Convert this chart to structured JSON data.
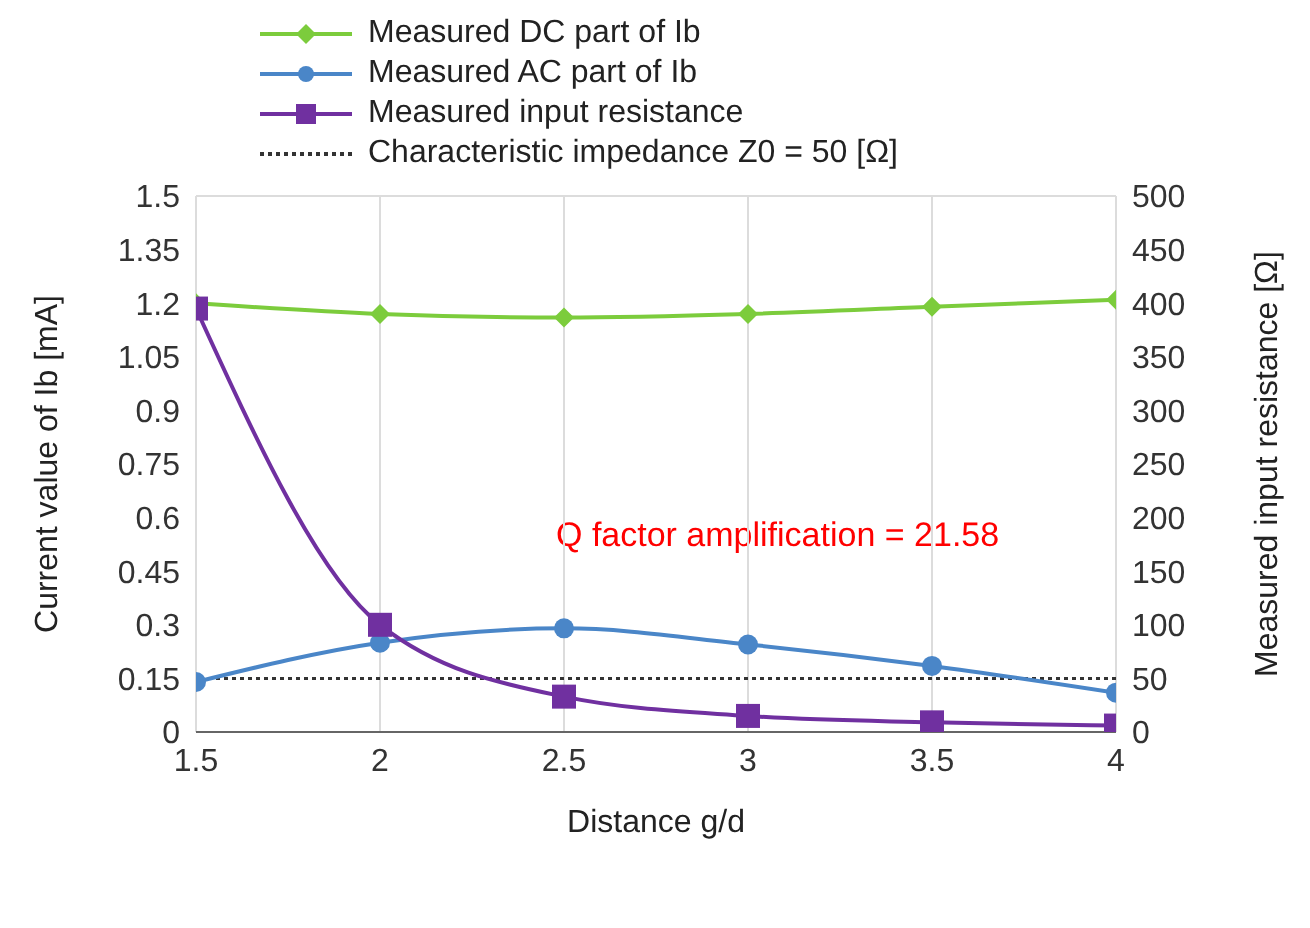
{
  "chart_data": {
    "type": "line",
    "xlabel": "Distance g/d",
    "ylabel": "Current value of Ib [mA]",
    "y2label": "Measured input resistance [Ω]",
    "x": [
      1.5,
      2,
      2.5,
      3,
      3.5,
      4
    ],
    "series": [
      {
        "name": "Measured DC part of Ib",
        "color": "#7ccc3c",
        "marker": "diamond",
        "values": [
          1.2,
          1.17,
          1.16,
          1.17,
          1.19,
          1.21
        ]
      },
      {
        "name": "Measured AC part of Ib",
        "color": "#4a86c8",
        "marker": "circle",
        "values": [
          0.14,
          0.25,
          0.29,
          0.245,
          0.185,
          0.11
        ]
      },
      {
        "name": "Measured input resistance",
        "color": "#7030a0",
        "marker": "square",
        "axis": "y2",
        "values": [
          395,
          100,
          33,
          15,
          9,
          6
        ]
      }
    ],
    "ref_lines": [
      {
        "axis": "y2",
        "value": 50,
        "label": "Characteristic impedance Z0 = 50 [Ω]",
        "color": "#333333",
        "line_style": "dotted"
      }
    ],
    "annotations": [
      "Q factor amplification = 21.58"
    ],
    "xlim": [
      1.5,
      4
    ],
    "xticks": [
      1.5,
      2,
      2.5,
      3,
      3.5,
      4
    ],
    "ylim": [
      0,
      1.5
    ],
    "yticks": [
      0,
      0.15,
      0.3,
      0.45,
      0.6,
      0.75,
      0.9,
      1.05,
      1.2,
      1.35,
      1.5
    ],
    "y2lim": [
      0,
      500
    ],
    "y2ticks": [
      0,
      50,
      100,
      150,
      200,
      250,
      300,
      350,
      400,
      450,
      500
    ],
    "grid": true,
    "legend": "top"
  }
}
